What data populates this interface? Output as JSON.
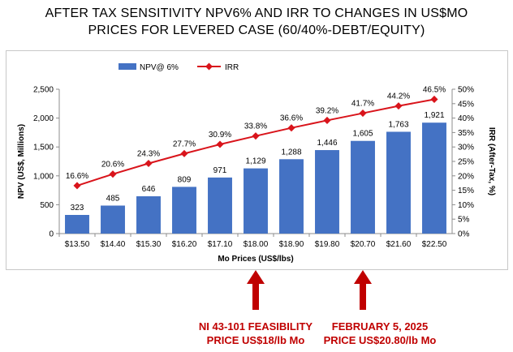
{
  "title_line1": "AFTER TAX SENSITIVITY NPV6% AND IRR TO CHANGES IN US$MO",
  "title_line2": "PRICES FOR LEVERED CASE (60/40%-DEBT/EQUITY)",
  "annotations": [
    {
      "line1": "NI 43-101 FEASIBILITY",
      "line2": "PRICE US$18/lb Mo",
      "category": "$18.00"
    },
    {
      "line1": "FEBRUARY 5, 2025",
      "line2": "PRICE US$20.80/lb Mo",
      "category": "$20.70"
    }
  ],
  "chart_data": {
    "type": "bar+line",
    "categories": [
      "$13.50",
      "$14.40",
      "$15.30",
      "$16.20",
      "$17.10",
      "$18.00",
      "$18.90",
      "$19.80",
      "$20.70",
      "$21.60",
      "$22.50"
    ],
    "series": [
      {
        "name": "NPV@ 6%",
        "type": "bar",
        "axis": "left",
        "color": "#4472c4",
        "values": [
          323,
          485,
          646,
          809,
          971,
          1129,
          1288,
          1446,
          1605,
          1763,
          1921
        ],
        "labels": [
          "323",
          "485",
          "646",
          "809",
          "971",
          "1,129",
          "1,288",
          "1,446",
          "1,605",
          "1,763",
          "1,921"
        ]
      },
      {
        "name": "IRR",
        "type": "line",
        "axis": "right",
        "color": "#d9141b",
        "values": [
          16.6,
          20.6,
          24.3,
          27.7,
          30.9,
          33.8,
          36.6,
          39.2,
          41.7,
          44.2,
          46.5
        ],
        "labels": [
          "16.6%",
          "20.6%",
          "24.3%",
          "27.7%",
          "30.9%",
          "33.8%",
          "36.6%",
          "39.2%",
          "41.7%",
          "44.2%",
          "46.5%"
        ]
      }
    ],
    "xlabel": "Mo Prices (US$/lbs)",
    "ylabel": "NPV (US$, Millions)",
    "y2label": "IRR (After-Tax, %)",
    "ylim": [
      0,
      2500
    ],
    "yticks": [
      "0",
      "500",
      "1,000",
      "1,500",
      "2,000",
      "2,500"
    ],
    "y2lim": [
      0,
      50
    ],
    "y2ticks": [
      "0%",
      "5%",
      "10%",
      "15%",
      "20%",
      "25%",
      "30%",
      "35%",
      "40%",
      "45%",
      "50%"
    ],
    "legend": "top",
    "annotation_color": "#c00000",
    "grid": false
  }
}
